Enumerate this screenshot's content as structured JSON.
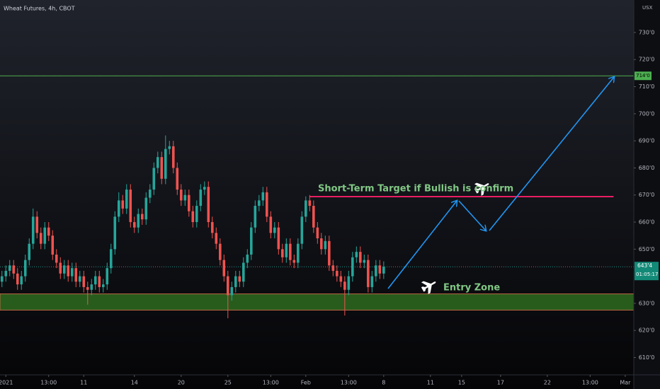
{
  "chart_data": {
    "type": "candlestick",
    "title": "Wheat Futures, 4h, CBOT",
    "currency": "USX",
    "ylim": [
      603.6,
      742
    ],
    "yticks": [
      {
        "value": 730,
        "label": "730'0"
      },
      {
        "value": 720,
        "label": "720'0"
      },
      {
        "value": 710,
        "label": "710'0"
      },
      {
        "value": 700,
        "label": "700'0"
      },
      {
        "value": 690,
        "label": "690'0"
      },
      {
        "value": 680,
        "label": "680'0"
      },
      {
        "value": 670,
        "label": "670'0"
      },
      {
        "value": 660,
        "label": "660'0"
      },
      {
        "value": 650,
        "label": "650'0"
      },
      {
        "value": 630,
        "label": "630'0"
      },
      {
        "value": 620,
        "label": "620'0"
      },
      {
        "value": 610,
        "label": "610'0"
      }
    ],
    "xlim": [
      -0.5,
      162.2
    ],
    "xticks": [
      {
        "value": 1,
        "label": "2021"
      },
      {
        "value": 12,
        "label": "13:00"
      },
      {
        "value": 21,
        "label": "11"
      },
      {
        "value": 34,
        "label": "14"
      },
      {
        "value": 46,
        "label": "20"
      },
      {
        "value": 58,
        "label": "25"
      },
      {
        "value": 69,
        "label": "13:00"
      },
      {
        "value": 78,
        "label": "Feb"
      },
      {
        "value": 89,
        "label": "13:00"
      },
      {
        "value": 98,
        "label": "8"
      },
      {
        "value": 110,
        "label": "11"
      },
      {
        "value": 118,
        "label": "15"
      },
      {
        "value": 128,
        "label": "17"
      },
      {
        "value": 140,
        "label": "22"
      },
      {
        "value": 151,
        "label": "13:00"
      },
      {
        "value": 160,
        "label": "Mar"
      }
    ],
    "up_color": "#26a69a",
    "down_color": "#ef5350",
    "open": [
      638,
      640,
      642,
      644,
      641,
      637,
      640,
      646,
      652,
      662,
      656,
      652,
      658,
      655,
      648,
      645,
      641,
      644,
      640,
      643,
      638,
      640,
      636,
      635,
      637,
      640,
      636,
      637,
      643,
      650,
      662,
      668,
      665,
      672,
      660,
      658,
      663,
      661,
      669,
      672,
      680,
      684,
      676,
      687,
      688,
      680,
      672,
      668,
      670,
      664,
      660,
      666,
      672,
      673,
      660,
      656,
      652,
      646,
      640,
      633,
      636,
      640,
      638,
      645,
      648,
      658,
      666,
      668,
      671,
      662,
      656,
      658,
      650,
      647,
      652,
      646,
      645,
      652,
      662,
      668,
      666,
      658,
      654,
      650,
      653,
      644,
      642,
      640,
      638,
      635,
      640,
      647,
      649,
      645,
      646,
      636,
      640,
      644,
      641
    ],
    "high": [
      642,
      644,
      646,
      646,
      643,
      642,
      648,
      654,
      665,
      664,
      658,
      660,
      660,
      657,
      650,
      647,
      646,
      646,
      645,
      645,
      642,
      642,
      638,
      639,
      642,
      642,
      639,
      645,
      652,
      664,
      671,
      670,
      674,
      674,
      662,
      665,
      665,
      671,
      674,
      682,
      686,
      686,
      692,
      690,
      690,
      682,
      674,
      672,
      672,
      666,
      668,
      674,
      675,
      675,
      662,
      658,
      654,
      648,
      642,
      638,
      642,
      642,
      647,
      650,
      660,
      668,
      670,
      673,
      673,
      664,
      660,
      660,
      652,
      654,
      654,
      648,
      654,
      664,
      669.5,
      670,
      668,
      660,
      656,
      655,
      655,
      646,
      644,
      642,
      640,
      642,
      649,
      651,
      651,
      648,
      648,
      642,
      646,
      646,
      645.5
    ],
    "low": [
      636,
      638,
      640,
      639,
      635,
      635,
      638,
      644,
      650,
      654,
      650,
      650,
      653,
      646,
      643,
      639,
      639,
      638,
      638,
      636,
      636,
      634,
      629.5,
      633,
      635,
      634,
      634,
      635,
      641,
      648,
      660,
      663,
      663,
      658,
      656,
      656,
      659,
      659,
      667,
      670,
      678,
      674,
      674,
      685,
      678,
      670,
      666,
      666,
      662,
      658,
      658,
      664,
      670,
      658,
      654,
      650,
      644,
      638,
      624.5,
      631,
      634,
      636,
      636,
      643,
      646,
      656,
      664,
      666,
      660,
      654,
      654,
      648,
      645,
      645,
      644,
      643,
      643,
      650,
      660,
      664,
      656,
      652,
      648,
      648,
      642,
      640,
      638,
      636,
      625.5,
      633,
      638,
      645,
      643,
      643,
      634,
      634,
      638,
      639,
      639
    ],
    "close": [
      640,
      642,
      644,
      641,
      637,
      640,
      646,
      652,
      662,
      656,
      652,
      658,
      655,
      648,
      645,
      641,
      644,
      640,
      643,
      638,
      640,
      636,
      635,
      637,
      640,
      636,
      637,
      643,
      650,
      662,
      668,
      665,
      672,
      660,
      658,
      663,
      661,
      669,
      672,
      680,
      684,
      676,
      687,
      688,
      680,
      672,
      668,
      670,
      664,
      660,
      666,
      672,
      673,
      660,
      656,
      652,
      646,
      640,
      633,
      636,
      640,
      638,
      645,
      648,
      658,
      666,
      668,
      671,
      662,
      656,
      658,
      650,
      647,
      652,
      646,
      645,
      652,
      662,
      668,
      666,
      658,
      654,
      650,
      653,
      644,
      642,
      640,
      638,
      635,
      640,
      647,
      649,
      645,
      646,
      636,
      640,
      644,
      641,
      643.5
    ],
    "resistance": {
      "value": 714,
      "label": "714'0",
      "color": "#4caf50"
    },
    "target_level": {
      "value": 669.4,
      "from": 79,
      "to": 157,
      "color": "#e91e63"
    },
    "entry_zone": [
      627.5,
      633.5
    ],
    "last_price": {
      "value": 643.5,
      "label": "643'4",
      "countdown": "01:05:17"
    },
    "annotations": [
      "Short-Term Target if Bullish is confirm",
      "Entry Zone"
    ]
  }
}
